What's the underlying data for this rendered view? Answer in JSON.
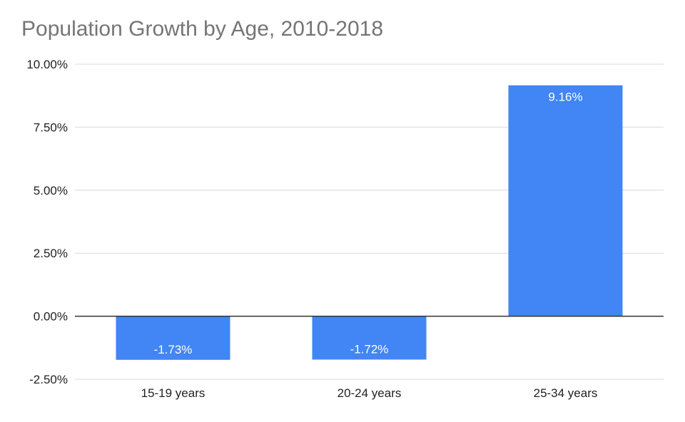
{
  "chart_data": {
    "type": "bar",
    "title": "Population Growth by Age, 2010-2018",
    "categories": [
      "15-19 years",
      "20-24 years",
      "25-34 years"
    ],
    "values": [
      -1.73,
      -1.72,
      9.16
    ],
    "data_labels": [
      "-1.73%",
      "-1.72%",
      "9.16%"
    ],
    "y_ticks": [
      -2.5,
      0,
      2.5,
      5,
      7.5,
      10
    ],
    "y_tick_labels": [
      "-2.50%",
      "0.00%",
      "2.50%",
      "5.00%",
      "7.50%",
      "10.00%"
    ],
    "ylim": [
      -2.5,
      10
    ],
    "grid": true,
    "legend": "none",
    "bar_color": "#4285f4"
  }
}
